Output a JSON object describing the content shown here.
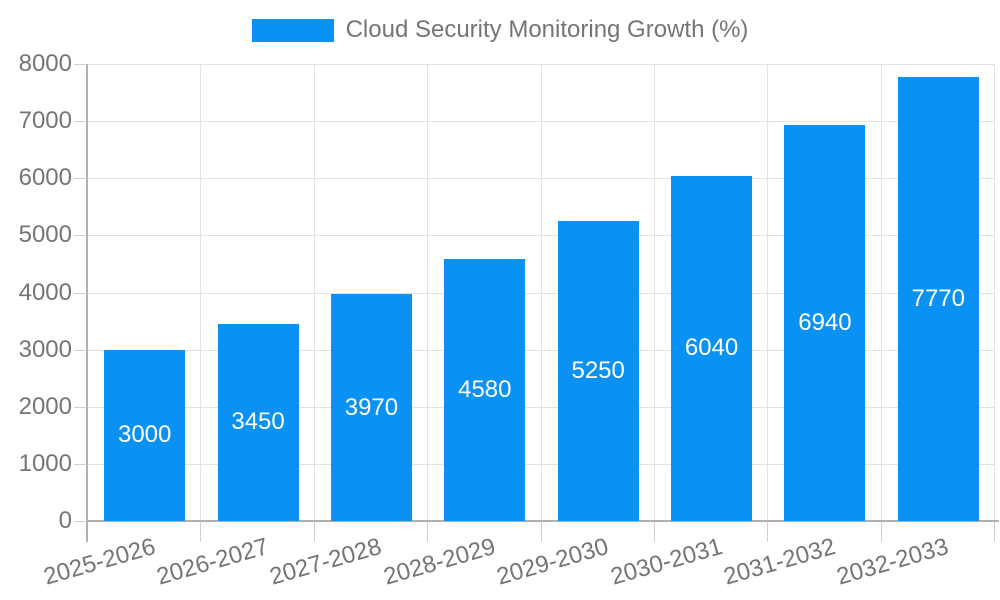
{
  "chart_data": {
    "type": "bar",
    "title": "Cloud Security Monitoring Growth (%)",
    "legend": {
      "position": "top",
      "entries": [
        {
          "label": "Cloud Security Monitoring Growth (%)",
          "color": "#0991f3"
        }
      ]
    },
    "categories": [
      "2025-2026",
      "2026-2027",
      "2027-2028",
      "2028-2029",
      "2029-2030",
      "2030-2031",
      "2031-2032",
      "2032-2033"
    ],
    "series": [
      {
        "name": "Cloud Security Monitoring Growth (%)",
        "values": [
          3000,
          3450,
          3970,
          4580,
          5250,
          6040,
          6940,
          7770
        ],
        "data_labels": [
          "3000",
          "3450",
          "3970",
          "4580",
          "5250",
          "6040",
          "6940",
          "7770"
        ]
      }
    ],
    "xlabel": "",
    "ylabel": "",
    "ylim": [
      0,
      8000
    ],
    "yticks": [
      0,
      1000,
      2000,
      3000,
      4000,
      5000,
      6000,
      7000,
      8000
    ],
    "ytick_labels": [
      "0",
      "1000",
      "2000",
      "3000",
      "4000",
      "5000",
      "6000",
      "7000",
      "8000"
    ],
    "grid": true,
    "colors": {
      "bar": "#0991f3",
      "bar_label_text": "#ffffff",
      "axis_text": "#757575",
      "gridline": "#e2e2e2",
      "axis_line": "#b0b0b0",
      "tick": "#cfcfcf",
      "background": "#ffffff"
    }
  }
}
